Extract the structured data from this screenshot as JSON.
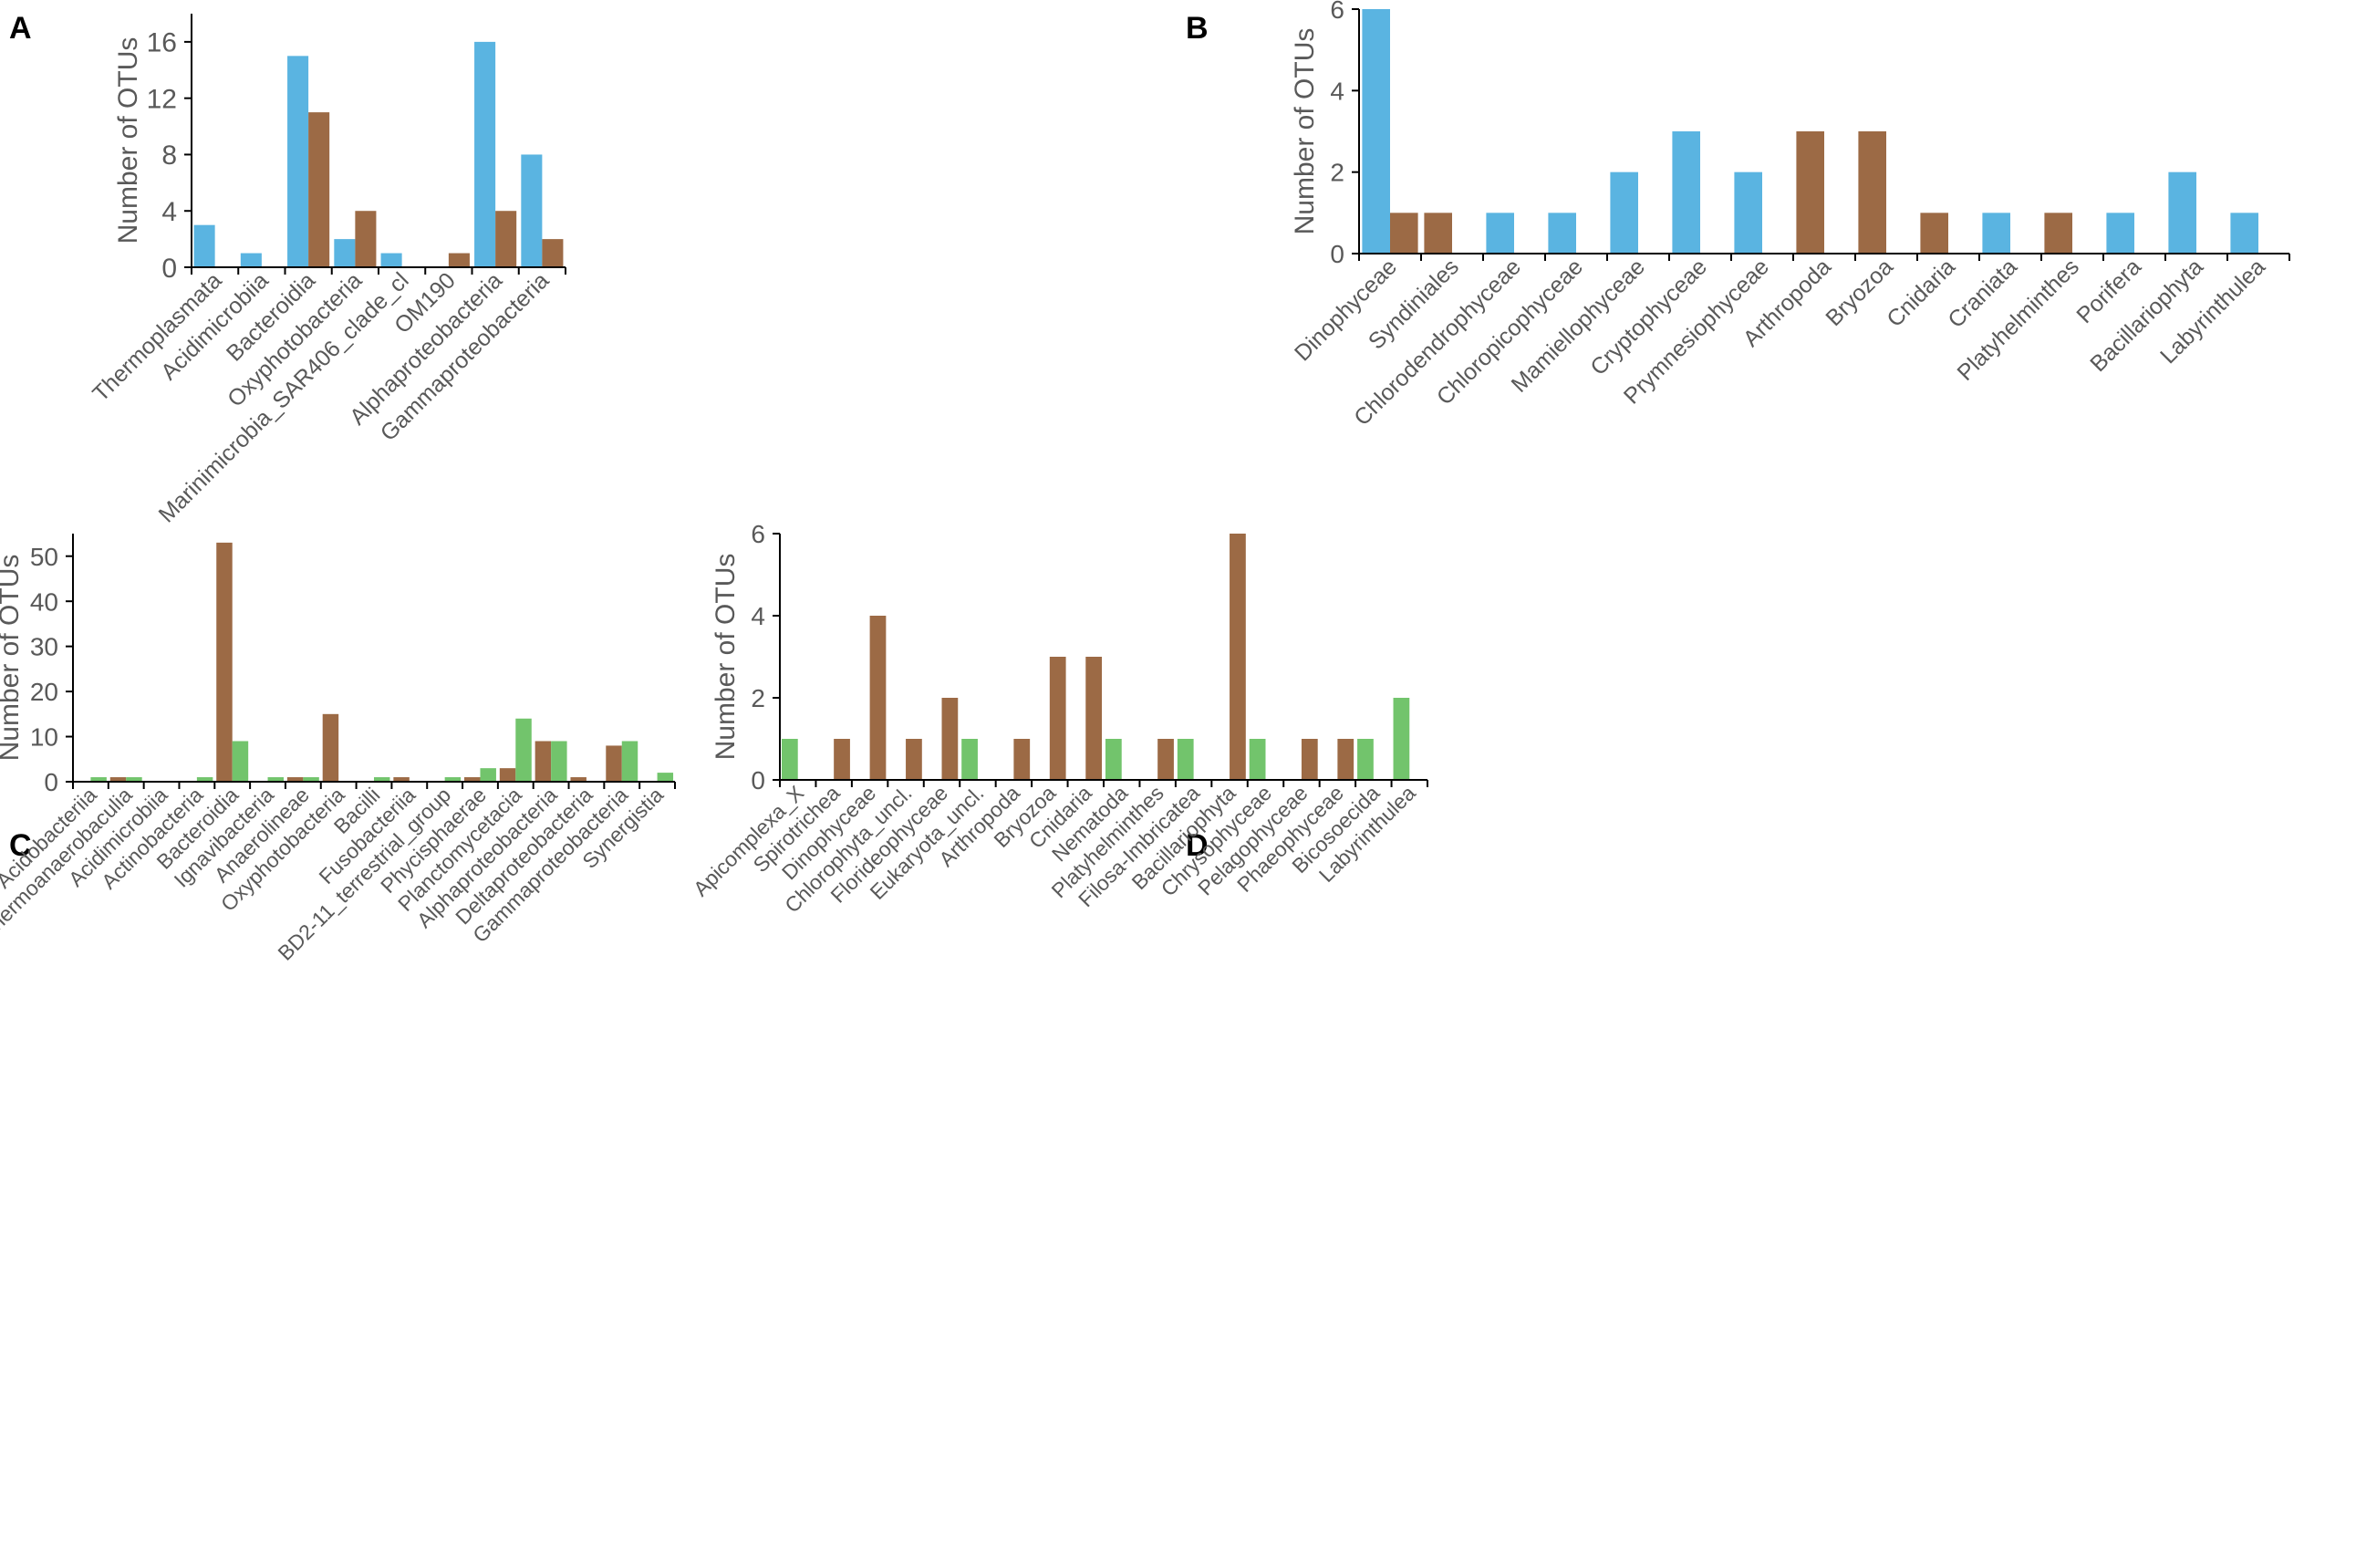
{
  "colors": {
    "blue": "#5ab4e1",
    "brown": "#9c6a45",
    "green": "#72c46c",
    "axis": "#000000",
    "text": "#595959"
  },
  "chart_data": [
    {
      "panel": "A",
      "type": "bar",
      "ylabel": "Number of OTUs",
      "ylim": [
        0,
        18
      ],
      "yticks": [
        0,
        4,
        8,
        12,
        16
      ],
      "grid": false,
      "categories": [
        "Thermoplasmata",
        "Acidimicrobiia",
        "Bacteroidia",
        "Oxyphotobacteria",
        "Marinimicrobia_SAR406_clade_cl",
        "OM190",
        "Alphaproteobacteria",
        "Gammaproteobacteria"
      ],
      "series": [
        {
          "name": "blue",
          "color": "blue",
          "values": [
            3,
            1,
            15,
            2,
            1,
            0,
            16,
            8
          ]
        },
        {
          "name": "brown",
          "color": "brown",
          "values": [
            0,
            0,
            11,
            4,
            0,
            1,
            4,
            2
          ]
        }
      ]
    },
    {
      "panel": "B",
      "type": "bar",
      "ylabel": "Number of OTUs",
      "ylim": [
        0,
        6
      ],
      "yticks": [
        0,
        2,
        4,
        6
      ],
      "grid": false,
      "categories": [
        "Dinophyceae",
        "Syndiniales",
        "Chlorodendrophyceae",
        "Chloropicophyceae",
        "Mamiellophyceae",
        "Cryptophyceae",
        "Prymnesiophyceae",
        "Arthropoda",
        "Bryozoa",
        "Cnidaria",
        "Craniata",
        "Platyhelminthes",
        "Porifera",
        "Bacillariophyta",
        "Labyrinthulea"
      ],
      "series": [
        {
          "name": "blue",
          "color": "blue",
          "values": [
            6,
            0,
            1,
            1,
            2,
            3,
            2,
            0,
            0,
            0,
            1,
            0,
            1,
            2,
            1
          ]
        },
        {
          "name": "brown",
          "color": "brown",
          "values": [
            1,
            1,
            0,
            0,
            0,
            0,
            0,
            3,
            3,
            1,
            0,
            1,
            0,
            0,
            0
          ]
        }
      ],
      "order": [
        "blue",
        "brown"
      ],
      "single_first": [
        "blue",
        "brown",
        "blue",
        "blue",
        "blue",
        "blue",
        "blue",
        "brown",
        "brown",
        "brown",
        "blue",
        "brown",
        "blue",
        "blue",
        "blue"
      ]
    },
    {
      "panel": "C",
      "type": "bar",
      "ylabel": "Number of OTUs",
      "ylim": [
        0,
        55
      ],
      "yticks": [
        0,
        10,
        20,
        30,
        40,
        50
      ],
      "grid": false,
      "categories": [
        "Acidobacteriia",
        "Thermoanaerobaculia",
        "Acidimicrobiia",
        "Actinobacteria",
        "Bacteroidia",
        "Ignavibacteria",
        "Anaerolineae",
        "Oxyphotobacteria",
        "Bacilli",
        "Fusobacteriia",
        "BD2-11_terrestrial_group",
        "Phycisphaerae",
        "Planctomycetacia",
        "Alphaproteobacteria",
        "Deltaproteobacteria",
        "Gammaproteobacteria",
        "Synergistia"
      ],
      "series": [
        {
          "name": "green",
          "color": "green",
          "values": [
            1,
            1,
            0,
            1,
            9,
            1,
            1,
            0,
            1,
            0,
            1,
            3,
            14,
            9,
            0,
            9,
            2
          ]
        },
        {
          "name": "brown",
          "color": "brown",
          "values": [
            0,
            1,
            0,
            0,
            53,
            0,
            1,
            15,
            0,
            1,
            0,
            1,
            3,
            9,
            1,
            8,
            0
          ]
        }
      ],
      "pair_order": "brown-first"
    },
    {
      "panel": "D",
      "type": "bar",
      "ylabel": "Number of OTUs",
      "ylim": [
        0,
        6
      ],
      "yticks": [
        0,
        2,
        4,
        6
      ],
      "grid": false,
      "categories": [
        "Apicomplexa_X",
        "Spirotrichea",
        "Dinophyceae",
        "Chlorophyta_uncl.",
        "Florideophyceae",
        "Eukaryota_uncl.",
        "Arthropoda",
        "Bryozoa",
        "Cnidaria",
        "Nematoda",
        "Platyhelminthes",
        "Filosa-Imbricatea",
        "Bacillariophyta",
        "Chrysophyceae",
        "Pelagophyceae",
        "Phaeophyceae",
        "Bicosoecida",
        "Labyrinthulea"
      ],
      "series": [
        {
          "name": "green",
          "color": "green",
          "values": [
            1,
            0,
            0,
            0,
            0,
            1,
            0,
            0,
            0,
            1,
            0,
            1,
            0,
            1,
            0,
            0,
            1,
            2
          ]
        },
        {
          "name": "brown",
          "color": "brown",
          "values": [
            0,
            1,
            4,
            1,
            2,
            0,
            1,
            3,
            3,
            0,
            1,
            0,
            6,
            0,
            1,
            1,
            0,
            0
          ]
        }
      ],
      "pair_order": "green-first"
    }
  ]
}
